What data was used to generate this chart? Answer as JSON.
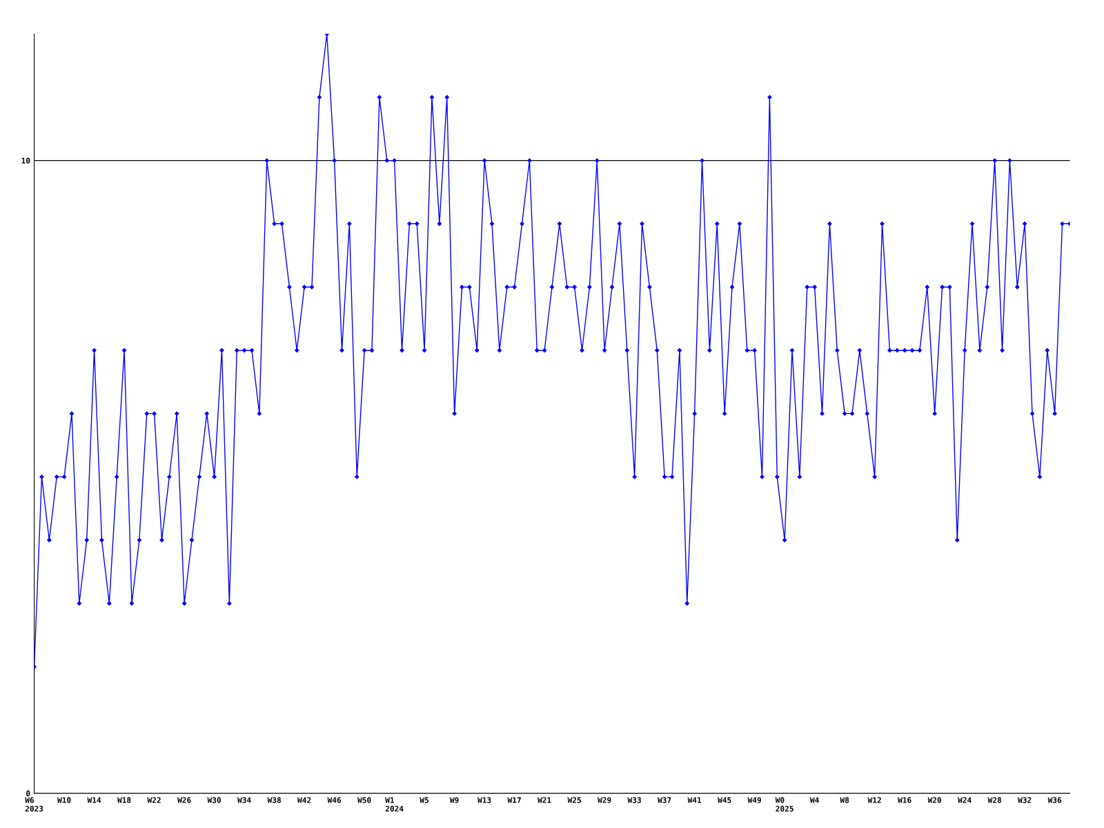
{
  "chart_data": {
    "type": "line",
    "categories": [
      "W6\n2023",
      null,
      null,
      null,
      "W10",
      null,
      null,
      null,
      "W14",
      null,
      null,
      null,
      "W18",
      null,
      null,
      null,
      "W22",
      null,
      null,
      null,
      "W26",
      null,
      null,
      null,
      "W30",
      null,
      null,
      null,
      "W34",
      null,
      null,
      null,
      "W38",
      null,
      null,
      null,
      "W42",
      null,
      null,
      null,
      "W46",
      null,
      null,
      null,
      "W50",
      null,
      null,
      null,
      "W1\n2024",
      null,
      null,
      null,
      "W5",
      null,
      null,
      null,
      "W9",
      null,
      null,
      null,
      "W13",
      null,
      null,
      null,
      "W17",
      null,
      null,
      null,
      "W21",
      null,
      null,
      null,
      "W25",
      null,
      null,
      null,
      "W29",
      null,
      null,
      null,
      "W33",
      null,
      null,
      null,
      "W37",
      null,
      null,
      null,
      "W41",
      null,
      null,
      null,
      "W45",
      null,
      null,
      null,
      "W49",
      null,
      null,
      null,
      "W0\n2025",
      null,
      null,
      null,
      "W4",
      null,
      null,
      null,
      "W8",
      null,
      null,
      null,
      "W12",
      null,
      null,
      null,
      "W16",
      null,
      null,
      null,
      "W20",
      null,
      null,
      null,
      "W24",
      null,
      null,
      null,
      "W28",
      null,
      null,
      null,
      "W32",
      null,
      null,
      null,
      "W36",
      null,
      null
    ],
    "series": [
      {
        "color": "#0000ff",
        "values": [
          2,
          5,
          4,
          5,
          5,
          6,
          3,
          4,
          7,
          4,
          3,
          5,
          7,
          3,
          4,
          6,
          6,
          4,
          5,
          6,
          3,
          4,
          5,
          6,
          5,
          7,
          3,
          7,
          7,
          7,
          6,
          10,
          9,
          9,
          8,
          7,
          8,
          8,
          11,
          12,
          10,
          7,
          9,
          5,
          7,
          7,
          11,
          10,
          10,
          7,
          9,
          9,
          7,
          11,
          9,
          11,
          6,
          8,
          8,
          7,
          10,
          9,
          7,
          8,
          8,
          9,
          10,
          7,
          7,
          8,
          9,
          8,
          8,
          7,
          8,
          10,
          7,
          8,
          9,
          7,
          5,
          9,
          8,
          7,
          5,
          5,
          7,
          3,
          6,
          10,
          7,
          9,
          6,
          8,
          9,
          7,
          7,
          5,
          11,
          5,
          4,
          7,
          5,
          8,
          8,
          6,
          9,
          7,
          6,
          6,
          7,
          6,
          5,
          9,
          7,
          7,
          7,
          7,
          7,
          8,
          6,
          8,
          8,
          4,
          7,
          9,
          7,
          8,
          10,
          7,
          10,
          8,
          9,
          6,
          5,
          7,
          6,
          9,
          9
        ]
      }
    ],
    "ylim": [
      0,
      12
    ],
    "yticks": [
      0,
      10
    ],
    "grid": "y",
    "marker": "diamond",
    "line_style": "solid"
  }
}
